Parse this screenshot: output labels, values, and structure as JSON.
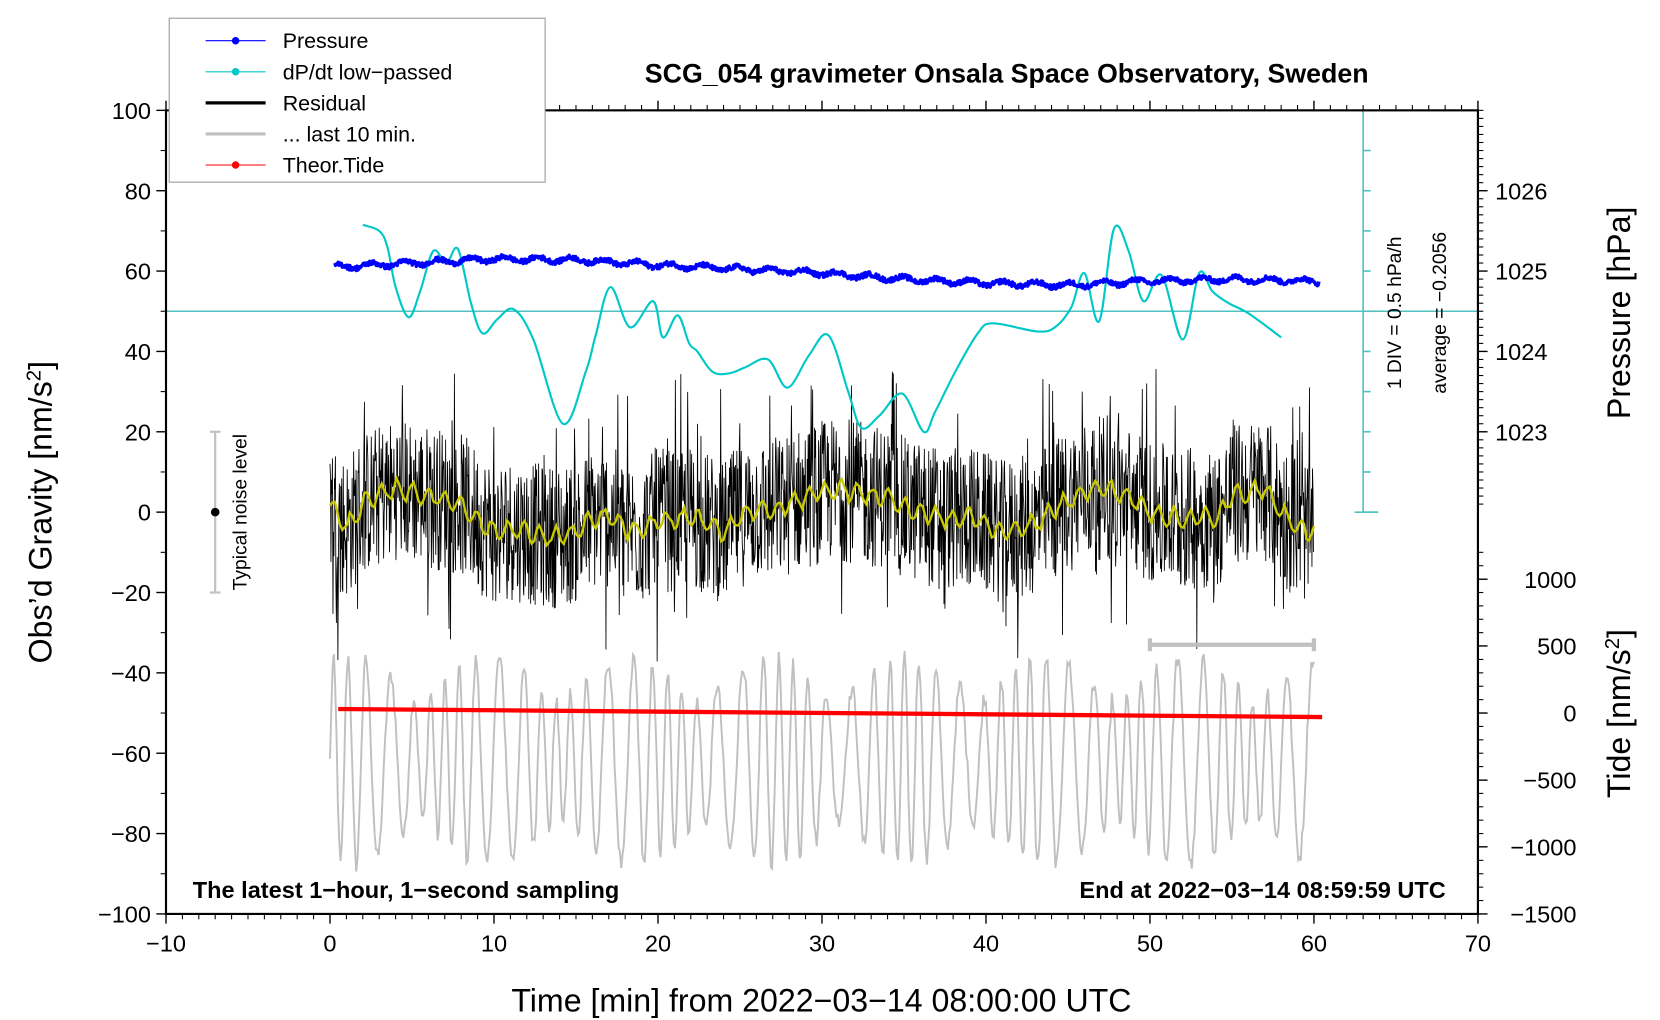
{
  "chart_data": {
    "type": "line",
    "title": "SCG_054 gravimeter Onsala Space Observatory, Sweden",
    "xlabel": "Time [min] from 2022−03−14 08:00:00 UTC",
    "ylabel_left": "Obs’d Gravity [nm/s²]",
    "ylabel_left_parts": {
      "main": "Obs’d Gravity [nm/s",
      "sup": "2",
      "close": "]"
    },
    "ylabel_right_top": "Pressure [hPa]",
    "ylabel_right_bottom_parts": {
      "main": "Tide [nm/s",
      "sup": "2",
      "close": "]"
    },
    "xlim": [
      -10,
      70
    ],
    "ylim_left": [
      -100,
      100
    ],
    "x_ticks": [
      -10,
      0,
      10,
      20,
      30,
      40,
      50,
      60,
      70
    ],
    "x_tick_labels": [
      "−10",
      "0",
      "10",
      "20",
      "30",
      "40",
      "50",
      "60",
      "70"
    ],
    "y_left_ticks": [
      100,
      80,
      60,
      40,
      20,
      0,
      -20,
      -40,
      -60,
      -80,
      -100
    ],
    "y_left_tick_labels": [
      "100",
      "80",
      "60",
      "40",
      "20",
      "0",
      "−20",
      "−40",
      "−60",
      "−80",
      "−100"
    ],
    "pressure_axis": {
      "ticks": [
        1026,
        1025,
        1024,
        1023
      ],
      "tick_labels": [
        "1026",
        "1025",
        "1024",
        "1023"
      ],
      "gravity_equivalent": [
        80,
        60,
        40,
        20
      ]
    },
    "tide_axis": {
      "ticks": [
        1000,
        500,
        0,
        -500,
        -1000,
        -1500
      ],
      "tick_labels": [
        "1000",
        "500",
        "0",
        "−500",
        "−1000",
        "−1500"
      ],
      "gravity_equivalent": [
        -16.7,
        -33.3,
        -50,
        -66.7,
        -83.3,
        -100
      ]
    },
    "dpdt_scale": {
      "label": "1 DIV = 0.5 hPa/h",
      "average_label": "average = −0.2056",
      "zero_line_gravity": 50,
      "scale_top": 100,
      "scale_bottom": 0,
      "x_position": 63
    },
    "legend": {
      "placement": "top-left",
      "entries": [
        {
          "label": "Pressure",
          "color": "#0000ff",
          "marker": true
        },
        {
          "label": "dP/dt low−passed",
          "color": "#00c8c8",
          "marker": true
        },
        {
          "label": "Residual",
          "color": "#000000",
          "marker": false
        },
        {
          "label": "... last 10 min.",
          "color": "#c0c0c0",
          "marker": false
        },
        {
          "label": "Theor.Tide",
          "color": "#ff0000",
          "marker": true
        }
      ]
    },
    "noise_level": {
      "label": "Typical noise level",
      "x": -7,
      "center": 0,
      "low": -20,
      "high": 20
    },
    "last10_bar": {
      "x_start": 50,
      "x_end": 60,
      "y": -33
    },
    "annotations": {
      "bottom_left": "The latest 1−hour, 1−second sampling",
      "bottom_right": "End at 2022−03−14 08:59:59 UTC"
    },
    "series": [
      {
        "name": "Pressure",
        "color": "#0000ff",
        "unit": "hPa",
        "x": [
          0.3,
          5,
          10,
          15,
          20,
          25,
          30,
          35,
          40,
          45,
          50,
          55,
          60.3
        ],
        "y_hpa": [
          1025.1,
          1025.15,
          1025.17,
          1025.15,
          1025.1,
          1025.05,
          1024.98,
          1024.9,
          1024.8,
          1024.75,
          1024.8,
          1024.8,
          1024.8
        ],
        "y_gravity": [
          61,
          62,
          63,
          62.8,
          61.5,
          60.5,
          59.5,
          58,
          57,
          56.5,
          57.5,
          58,
          57.5
        ]
      },
      {
        "name": "dP/dt low-passed",
        "color": "#00c8c8",
        "x": [
          2,
          3,
          3.5,
          4,
          4.8,
          5.5,
          6.3,
          7.1,
          7.8,
          8.6,
          9.3,
          10.2,
          11.2,
          12.4,
          14.2,
          15.6,
          16.2,
          17.1,
          18.3,
          19.7,
          20.3,
          21.2,
          21.9,
          22.4,
          23.3,
          24.3,
          25.3,
          26.7,
          27.9,
          29.2,
          30.4,
          31.6,
          32.4,
          33.5,
          34.9,
          36.2,
          36.9,
          38.2,
          39.5,
          40.4,
          43.1,
          44.2,
          45.2,
          46,
          46.9,
          47.8,
          48.7,
          49.6,
          50.7,
          52,
          53,
          53.8,
          54.8,
          56,
          58
        ],
        "y": [
          71.5,
          70,
          66,
          56,
          48.5,
          55,
          65,
          62,
          65.5,
          52,
          44.5,
          48,
          50.5,
          43,
          22,
          35,
          44,
          56,
          46,
          52.5,
          43.5,
          49,
          42,
          40,
          35,
          34.5,
          36,
          38,
          31,
          39,
          44,
          30,
          21,
          24,
          29.5,
          20,
          25,
          35.5,
          44.5,
          47,
          45,
          46,
          51,
          59.5,
          47.5,
          70.5,
          65,
          52.5,
          59,
          43,
          59.5,
          55,
          52,
          49.5,
          43.5
        ]
      },
      {
        "name": "Residual",
        "color": "#000000",
        "x_range": [
          0,
          60
        ],
        "typical_range": [
          -30,
          30
        ],
        "extreme_range": [
          -43,
          45
        ]
      },
      {
        "name": "Residual smoothed",
        "color": "#c8c800",
        "x": [
          0,
          1,
          2,
          3,
          4,
          5,
          6,
          7,
          8,
          9,
          10,
          11,
          12,
          13,
          14,
          15,
          16,
          17,
          18,
          19,
          20,
          21,
          22,
          23,
          24,
          25,
          26,
          27,
          28,
          29,
          30,
          31,
          32,
          33,
          34,
          35,
          36,
          37,
          38,
          39,
          40,
          41,
          42,
          43,
          44,
          45,
          46,
          47,
          48,
          49,
          50,
          51,
          52,
          53,
          54,
          55,
          56,
          57,
          58,
          59,
          60
        ],
        "y": [
          2,
          -4,
          2,
          4,
          6,
          5,
          4,
          3,
          2,
          -2,
          -5,
          -4,
          -5,
          -6,
          -6,
          -5,
          -2,
          -1,
          -4,
          -5,
          -2,
          -2,
          -1,
          -3,
          -5,
          -1,
          1,
          0,
          2,
          4,
          5,
          6,
          5,
          4,
          4,
          1,
          0,
          -1,
          -2,
          -1,
          -3,
          -5,
          -4,
          -3,
          0,
          3,
          5,
          6,
          5,
          3,
          0,
          -1,
          -2,
          -1,
          -2,
          4,
          5,
          6,
          0,
          -4,
          -5
        ]
      },
      {
        "name": "... last 10 min.",
        "color": "#c0c0c0",
        "x_range": [
          0,
          60
        ],
        "range_gravity": [
          -100,
          -33
        ]
      },
      {
        "name": "Theor.Tide",
        "color": "#ff0000",
        "unit": "nm/s²",
        "x": [
          0.5,
          60.5
        ],
        "y_tide": [
          10,
          -30
        ],
        "y_gravity": [
          -49,
          -51
        ]
      }
    ]
  }
}
